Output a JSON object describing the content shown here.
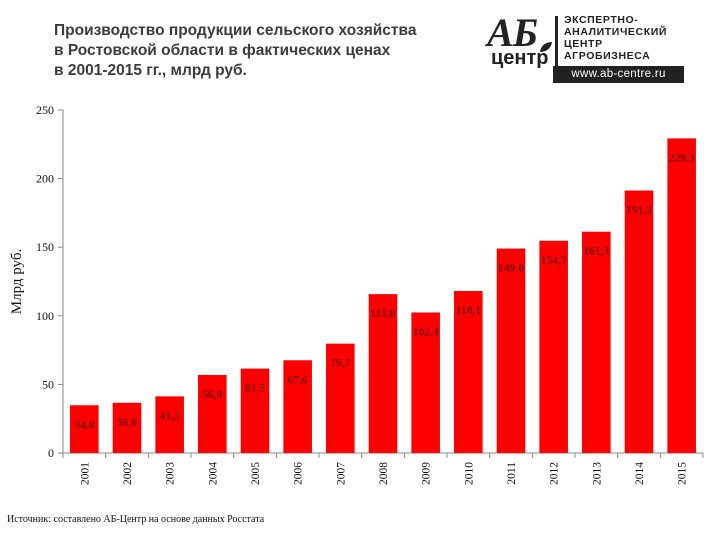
{
  "header": {
    "title_lines": [
      "Производство продукции сельского хозяйства",
      "в Ростовской области в фактических ценах",
      "в 2001-2015 гг., млрд руб."
    ]
  },
  "logo": {
    "abbr": "АБ",
    "word": "центр",
    "lines": [
      "ЭКСПЕРТНО-",
      "АНАЛИТИЧЕСКИЙ",
      "ЦЕНТР",
      "АГРОБИЗНЕСА"
    ],
    "url": "www.ab-centre.ru"
  },
  "chart_data": {
    "type": "bar",
    "categories": [
      "2001",
      "2002",
      "2003",
      "2004",
      "2005",
      "2006",
      "2007",
      "2008",
      "2009",
      "2010",
      "2011",
      "2012",
      "2013",
      "2014",
      "2015"
    ],
    "values": [
      34.8,
      36.6,
      41.3,
      56.9,
      61.5,
      67.6,
      79.7,
      115.8,
      102.4,
      118.1,
      149.0,
      154.7,
      161.3,
      191.3,
      229.3
    ],
    "value_labels": [
      "34,8",
      "36,6",
      "41,3",
      "56,9",
      "61,5",
      "67,6",
      "79,7",
      "115,8",
      "102,4",
      "118,1",
      "149,0",
      "154,7",
      "161,3",
      "191,3",
      "229,3"
    ],
    "title": "Производство продукции сельского хозяйства в Ростовской области в фактических ценах в 2001-2015 гг., млрд руб.",
    "xlabel": "",
    "ylabel": "Млрд руб.",
    "ylim": [
      0,
      250
    ],
    "yticks": [
      "0",
      "50",
      "100",
      "150",
      "200",
      "250"
    ],
    "bar_color": "#ff0000",
    "label_color": "#7a0000"
  },
  "footer": {
    "source": "Источник: составлено АБ-Центр на основе данных Росстата"
  }
}
